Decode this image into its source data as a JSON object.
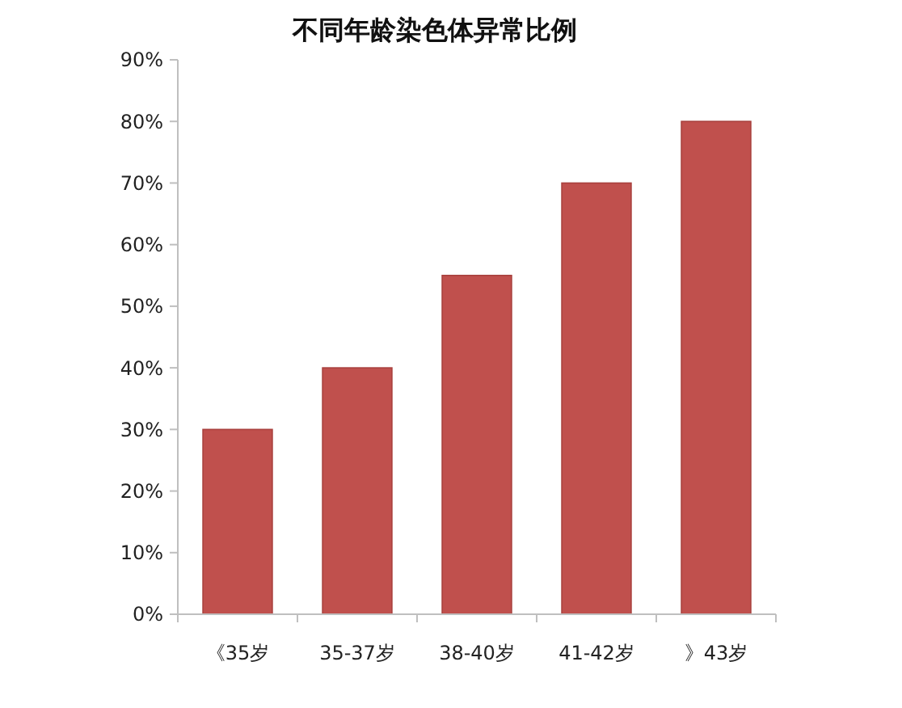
{
  "chart_data": {
    "type": "bar",
    "title": "不同年龄染色体异常比例",
    "categories": [
      "《35岁",
      "35-37岁",
      "38-40岁",
      "41-42岁",
      "》43岁"
    ],
    "values": [
      30,
      40,
      55,
      70,
      80
    ],
    "color": "#c0504d",
    "ylim": [
      0,
      90
    ],
    "yticks": [
      {
        "value": 0,
        "label": "0%"
      },
      {
        "value": 10,
        "label": "10%"
      },
      {
        "value": 20,
        "label": "20%"
      },
      {
        "value": 30,
        "label": "30%"
      },
      {
        "value": 40,
        "label": "40%"
      },
      {
        "value": 50,
        "label": "50%"
      },
      {
        "value": 60,
        "label": "60%"
      },
      {
        "value": 70,
        "label": "70%"
      },
      {
        "value": 80,
        "label": "80%"
      },
      {
        "value": 90,
        "label": "90%"
      }
    ],
    "grid": false
  }
}
